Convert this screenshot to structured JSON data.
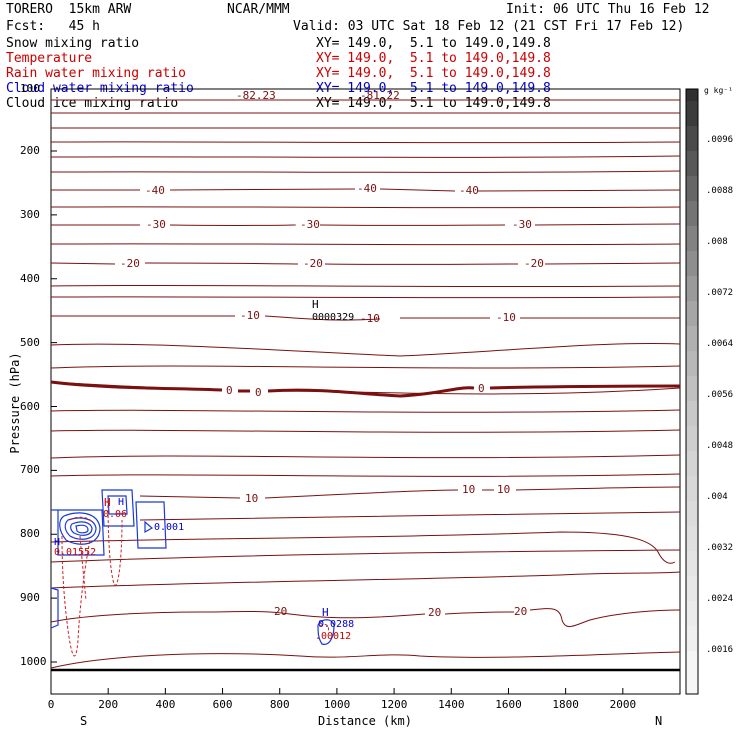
{
  "header": {
    "model": "TORERO  15km ARW",
    "center": "NCAR/MMM",
    "init": "Init: 06 UTC Thu 16 Feb 12",
    "fcst": "Fcst:   45 h",
    "valid": "Valid: 03 UTC Sat 18 Feb 12 (21 CST Fri 17 Feb 12)"
  },
  "legend": [
    {
      "field": "Snow mixing ratio",
      "xy": "XY= 149.0,  5.1 to 149.0,149.8",
      "color": "#000000"
    },
    {
      "field": "Temperature",
      "xy": "XY= 149.0,  5.1 to 149.0,149.8",
      "color": "#cc0000"
    },
    {
      "field": "Rain water mixing ratio",
      "xy": "XY= 149.0,  5.1 to 149.0,149.8",
      "color": "#cc0000"
    },
    {
      "field": "Cloud water mixing ratio",
      "xy": "XY= 149.0,  5.1 to 149.0,149.8",
      "color": "#0000cc"
    },
    {
      "field": "Cloud ice mixing ratio",
      "xy": "XY= 149.0,  5.1 to 149.0,149.8",
      "color": "#000000"
    }
  ],
  "chart_data": {
    "type": "contour",
    "xlabel": "Distance (km)",
    "ylabel": "Pressure (hPa)",
    "x_ticks": [
      0,
      200,
      400,
      600,
      800,
      1000,
      1200,
      1400,
      1600,
      1800,
      2000
    ],
    "x_tick_labels": [
      "0",
      "200",
      "400",
      "600",
      "800",
      "1000",
      "1200",
      "1400",
      "1600",
      "1800",
      "2000"
    ],
    "xlim": [
      0,
      2200
    ],
    "y_ticks": [
      200,
      300,
      400,
      500,
      600,
      700,
      800,
      900,
      1000
    ],
    "y_tick_labels": [
      "200",
      "300",
      "400",
      "500",
      "600",
      "700",
      "800",
      "900",
      "1000"
    ],
    "ylim_top_label": "100",
    "endpoints": {
      "left": "S",
      "right": "N"
    },
    "colorbar": {
      "unit": "g kg⁻¹",
      "labels": [
        ".0096",
        ".0088",
        ".008",
        ".0072",
        ".0064",
        ".0056",
        ".0048",
        ".004",
        ".0032",
        ".0024",
        ".0016"
      ]
    },
    "temperature_isotherm_levels": [
      -40,
      -30,
      -20,
      -10,
      0,
      10,
      20
    ],
    "isotherm_labels": [
      {
        "text": "-82.23"
      },
      {
        "text": "-81.22"
      },
      {
        "text": "-40"
      },
      {
        "text": "-40"
      },
      {
        "text": "-40"
      },
      {
        "text": "-30"
      },
      {
        "text": "-30"
      },
      {
        "text": "-30"
      },
      {
        "text": "-20"
      },
      {
        "text": "-20"
      },
      {
        "text": "-20"
      },
      {
        "text": "-10"
      },
      {
        "text": "-10"
      },
      {
        "text": "-10"
      },
      {
        "text": "0"
      },
      {
        "text": "0"
      },
      {
        "text": "0"
      },
      {
        "text": "10"
      },
      {
        "text": "10"
      },
      {
        "text": "10"
      },
      {
        "text": "20"
      },
      {
        "text": "20"
      },
      {
        "text": "20"
      }
    ],
    "extrema_labels": [
      {
        "text": "H",
        "color": "#000000"
      },
      {
        "text": "0000329",
        "color": "#000000"
      },
      {
        "text": "H",
        "color": "#cc0000"
      },
      {
        "text": "0.06",
        "color": "#cc0000"
      },
      {
        "text": "H",
        "color": "#0000cc"
      },
      {
        "text": "0.01552",
        "color": "#cc0000"
      },
      {
        "text": "H",
        "color": "#0000cc"
      },
      {
        "text": "0.001",
        "color": "#0000cc"
      },
      {
        "text": "H",
        "color": "#0000cc"
      },
      {
        "text": "0.0288",
        "color": "#0000cc"
      },
      {
        "text": ".00012",
        "color": "#cc0000"
      }
    ]
  }
}
